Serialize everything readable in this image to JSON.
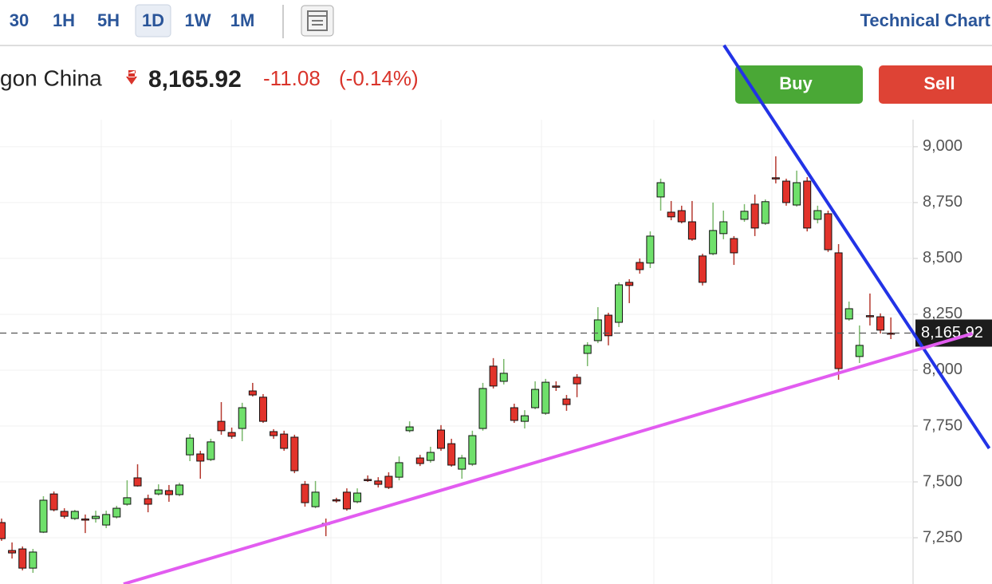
{
  "toolbar": {
    "intervals": [
      "30",
      "1H",
      "5H",
      "1D",
      "1W",
      "1M"
    ],
    "title": "Technical Chart"
  },
  "header": {
    "instrument": "gon China",
    "price": "8,165.92",
    "change": "-11.08",
    "change_percent": "(-0.14%)",
    "buy": "Buy",
    "sell": "Sell"
  },
  "chart_data": {
    "type": "candlestick",
    "up_color": "#6fe06b",
    "down_color": "#e2332b",
    "ylim": [
      7043,
      9121
    ],
    "xlim": [
      -0.15,
      87.12
    ],
    "yticks": [
      {
        "value": 7250,
        "label": "7,250"
      },
      {
        "value": 7500,
        "label": "7,500"
      },
      {
        "value": 7750,
        "label": "7,750"
      },
      {
        "value": 8000,
        "label": "8,000"
      },
      {
        "value": 8250,
        "label": "8,250"
      },
      {
        "value": 8500,
        "label": "8,500"
      },
      {
        "value": 8750,
        "label": "8,750"
      },
      {
        "value": 9000,
        "label": "9,000"
      }
    ],
    "last_price": {
      "value": 8165.92,
      "label": "8,165.92"
    },
    "ohlc": [
      [
        7318,
        7336,
        7236,
        7246
      ],
      [
        7193,
        7229,
        7157,
        7182
      ],
      [
        7200,
        7211,
        7104,
        7114
      ],
      [
        7114,
        7200,
        7093,
        7186
      ],
      [
        7275,
        7436,
        7271,
        7418
      ],
      [
        7446,
        7457,
        7368,
        7375
      ],
      [
        7368,
        7382,
        7336,
        7346
      ],
      [
        7336,
        7375,
        7329,
        7368
      ],
      [
        7334,
        7354,
        7271,
        7332
      ],
      [
        7336,
        7371,
        7318,
        7346
      ],
      [
        7307,
        7371,
        7293,
        7354
      ],
      [
        7343,
        7393,
        7336,
        7382
      ],
      [
        7400,
        7507,
        7393,
        7429
      ],
      [
        7518,
        7579,
        7479,
        7482
      ],
      [
        7425,
        7443,
        7364,
        7400
      ],
      [
        7446,
        7489,
        7439,
        7464
      ],
      [
        7461,
        7486,
        7411,
        7443
      ],
      [
        7443,
        7496,
        7436,
        7486
      ],
      [
        7621,
        7714,
        7593,
        7696
      ],
      [
        7625,
        7639,
        7514,
        7593
      ],
      [
        7600,
        7693,
        7593,
        7679
      ],
      [
        7771,
        7857,
        7711,
        7729
      ],
      [
        7721,
        7743,
        7693,
        7704
      ],
      [
        7739,
        7854,
        7682,
        7832
      ],
      [
        7907,
        7943,
        7882,
        7889
      ],
      [
        7879,
        7893,
        7764,
        7771
      ],
      [
        7725,
        7736,
        7693,
        7707
      ],
      [
        7714,
        7729,
        7639,
        7650
      ],
      [
        7700,
        7711,
        7539,
        7550
      ],
      [
        7489,
        7504,
        7389,
        7407
      ],
      [
        7389,
        7504,
        7382,
        7454
      ],
      [
        7314,
        7336,
        7257,
        7311
      ],
      [
        7420,
        7429,
        7407,
        7418
      ],
      [
        7454,
        7471,
        7371,
        7379
      ],
      [
        7411,
        7471,
        7404,
        7450
      ],
      [
        7511,
        7529,
        7500,
        7509
      ],
      [
        7504,
        7521,
        7475,
        7489
      ],
      [
        7525,
        7543,
        7468,
        7475
      ],
      [
        7521,
        7614,
        7507,
        7586
      ],
      [
        7729,
        7771,
        7721,
        7746
      ],
      [
        7607,
        7621,
        7571,
        7582
      ],
      [
        7596,
        7657,
        7586,
        7632
      ],
      [
        7732,
        7754,
        7639,
        7650
      ],
      [
        7671,
        7693,
        7568,
        7575
      ],
      [
        7557,
        7621,
        7514,
        7607
      ],
      [
        7579,
        7729,
        7571,
        7707
      ],
      [
        7739,
        7943,
        7729,
        7918
      ],
      [
        8018,
        8054,
        7918,
        7929
      ],
      [
        7950,
        8050,
        7936,
        7986
      ],
      [
        7832,
        7850,
        7764,
        7775
      ],
      [
        7771,
        7821,
        7739,
        7796
      ],
      [
        7832,
        7950,
        7825,
        7914
      ],
      [
        7807,
        7961,
        7800,
        7946
      ],
      [
        7929,
        7950,
        7907,
        7927
      ],
      [
        7871,
        7889,
        7818,
        7846
      ],
      [
        7968,
        7982,
        7879,
        7939
      ],
      [
        8075,
        8125,
        8018,
        8111
      ],
      [
        8132,
        8282,
        8121,
        8225
      ],
      [
        8246,
        8257,
        8111,
        8154
      ],
      [
        8214,
        8393,
        8193,
        8382
      ],
      [
        8393,
        8407,
        8300,
        8379
      ],
      [
        8482,
        8500,
        8432,
        8450
      ],
      [
        8479,
        8621,
        8457,
        8600
      ],
      [
        8775,
        8857,
        8714,
        8839
      ],
      [
        8707,
        8757,
        8671,
        8686
      ],
      [
        8714,
        8736,
        8657,
        8664
      ],
      [
        8664,
        8757,
        8579,
        8586
      ],
      [
        8511,
        8521,
        8379,
        8393
      ],
      [
        8521,
        8750,
        8514,
        8625
      ],
      [
        8611,
        8714,
        8586,
        8664
      ],
      [
        8589,
        8600,
        8471,
        8525
      ],
      [
        8675,
        8743,
        8664,
        8711
      ],
      [
        8743,
        8786,
        8600,
        8636
      ],
      [
        8657,
        8764,
        8650,
        8754
      ],
      [
        8861,
        8957,
        8836,
        8859
      ],
      [
        8846,
        8857,
        8736,
        8750
      ],
      [
        8739,
        8893,
        8732,
        8839
      ],
      [
        8846,
        8864,
        8621,
        8636
      ],
      [
        8675,
        8736,
        8657,
        8714
      ],
      [
        8700,
        8714,
        8529,
        8539
      ],
      [
        8525,
        8564,
        7957,
        8007
      ],
      [
        8229,
        8307,
        8221,
        8275
      ],
      [
        8061,
        8200,
        8032,
        8111
      ],
      [
        8244,
        8343,
        8200,
        8243
      ],
      [
        8239,
        8254,
        8164,
        8179
      ],
      [
        8166,
        8236,
        8139,
        8165.92
      ]
    ],
    "trendlines": [
      {
        "color": "#2233e6",
        "points": [
          [
            69.05,
            9454
          ],
          [
            94.4,
            7650
          ]
        ]
      },
      {
        "color": "#e25cf0",
        "points": [
          [
            11.66,
            7043
          ],
          [
            92.8,
            8164
          ]
        ]
      }
    ]
  }
}
